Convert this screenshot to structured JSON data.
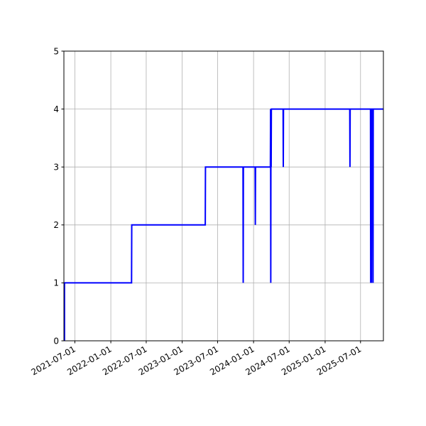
{
  "chart_data": {
    "type": "line",
    "title": "",
    "xlabel": "",
    "ylabel": "",
    "x_axis_type": "date",
    "xlim": [
      "2021-05-06",
      "2025-10-26"
    ],
    "ylim": [
      0,
      5
    ],
    "x_ticks": [
      "2021-07-01",
      "2022-01-01",
      "2022-07-01",
      "2023-01-01",
      "2023-07-01",
      "2024-01-01",
      "2024-07-01",
      "2025-01-01",
      "2025-07-01"
    ],
    "y_ticks": [
      0,
      1,
      2,
      3,
      4,
      5
    ],
    "grid": true,
    "line_style": "step",
    "series": [
      {
        "color": "#0000ff",
        "x": [
          "2021-05-09",
          "2021-05-09",
          "2021-05-10",
          "2022-04-17",
          "2022-04-18",
          "2023-04-29",
          "2023-04-30",
          "2023-11-08",
          "2023-11-09",
          "2023-11-10",
          "2024-01-09",
          "2024-01-10",
          "2024-01-11",
          "2024-03-27",
          "2024-03-28",
          "2024-03-29",
          "2024-03-30",
          "2024-03-31",
          "2024-04-01",
          "2024-05-31",
          "2024-06-01",
          "2024-06-02",
          "2025-05-07",
          "2025-05-08",
          "2025-05-09",
          "2025-08-21",
          "2025-08-22",
          "2025-08-24",
          "2025-08-26",
          "2025-08-27",
          "2025-09-02",
          "2025-09-03",
          "2025-09-04",
          "2025-10-26"
        ],
        "y": [
          0,
          1,
          1,
          1,
          2,
          2,
          3,
          3,
          1,
          3,
          3,
          2,
          3,
          3,
          4,
          1,
          4,
          3,
          4,
          4,
          3,
          4,
          4,
          3,
          4,
          4,
          1,
          4,
          1,
          4,
          4,
          1,
          4,
          4
        ]
      }
    ]
  }
}
